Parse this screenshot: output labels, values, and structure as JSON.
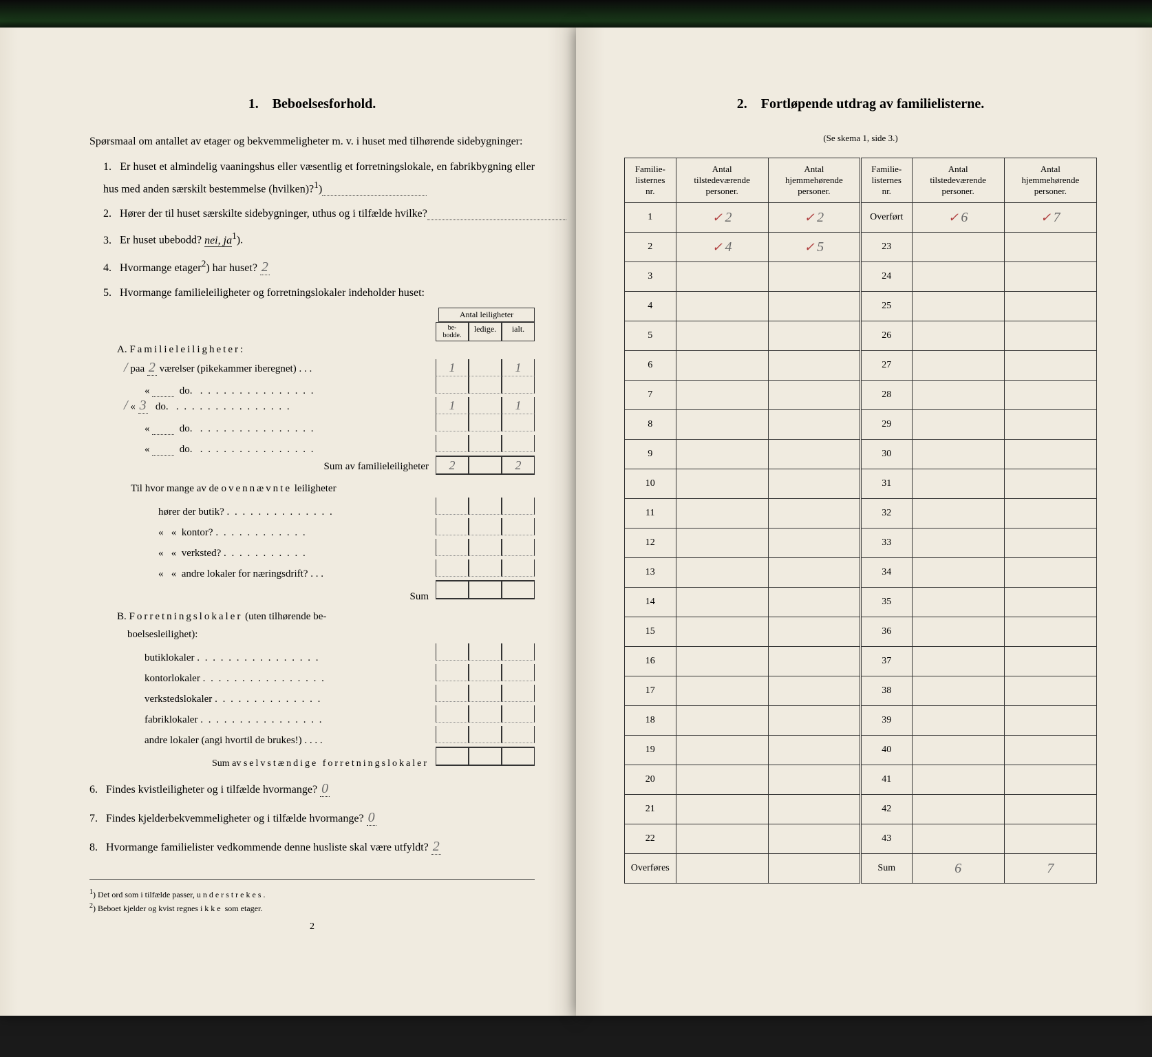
{
  "left": {
    "section_num": "1.",
    "section_title": "Beboelsesforhold.",
    "intro": "Spørsmaal om antallet av etager og bekvemmeligheter m. v. i huset med tilhørende sidebygninger:",
    "q1": "Er huset et almindelig vaaningshus eller væsentlig et forretningslokale, en fabrikbygning eller hus med anden særskilt bestemmelse (hvilken)?",
    "q1_sup": "1",
    "q2": "Hører der til huset særskilte sidebygninger, uthus og i tilfælde hvilke?",
    "q3": "Er huset ubebodd?",
    "q3_options": "nei, ja",
    "q3_sup": "1",
    "q4": "Hvormange etager",
    "q4_sup": "2",
    "q4_rest": "har huset?",
    "q4_answer": "2",
    "q5": "Hvormange familieleiligheter og forretningslokaler indeholder huset:",
    "table_header": "Antal leiligheter",
    "col_bebodde": "be-bodde.",
    "col_ledige": "ledige.",
    "col_ialt": "ialt.",
    "sectionA": "A. Familieleiligheter:",
    "paa": "paa",
    "vaerelser": "værelser (pikekammer iberegnet)",
    "do": "do.",
    "sum_familie": "Sum av familieleiligheter",
    "row_A1_num": "2",
    "row_A1_bebodde": "1",
    "row_A1_ialt": "1",
    "row_A3_num": "3",
    "row_A3_bebodde": "1",
    "row_A3_ialt": "1",
    "sum_bebodde": "2",
    "sum_ialt": "2",
    "til_hvor": "Til hvor mange av de ovennævnte leiligheter",
    "butik": "hører der butik?",
    "kontor": "kontor?",
    "verksted": "verksted?",
    "andre_naering": "andre lokaler for næringsdrift?",
    "sum": "Sum",
    "sectionB": "B. Forretningslokaler (uten tilhørende beboelsesleilighet):",
    "butiklokaler": "butiklokaler",
    "kontorlokaler": "kontorlokaler",
    "verkstedslokaler": "verkstedslokaler",
    "fabriklokaler": "fabriklokaler",
    "andre_lokaler": "andre lokaler (angi hvortil de brukes!)",
    "sum_selvstaendige": "Sum av selvstændige forretningslokaler",
    "q6": "Findes kvistleiligheter og i tilfælde hvormange?",
    "q6_answer": "0",
    "q7": "Findes kjelderbekvemmeligheter og i tilfælde hvormange?",
    "q7_answer": "0",
    "q8": "Hvormange familielister vedkommende denne husliste skal være utfyldt?",
    "q8_answer": "2",
    "footnote1": "Det ord som i tilfælde passer, understrekes.",
    "footnote2": "Beboet kjelder og kvist regnes ikke som etager.",
    "page_num": "2"
  },
  "right": {
    "section_num": "2.",
    "section_title": "Fortløpende utdrag av familielisterne.",
    "subtitle": "(Se skema 1, side 3.)",
    "col1": "Familie-listernes nr.",
    "col2": "Antal tilstedeværende personer.",
    "col3": "Antal hjemmehørende personer.",
    "overfort": "Overført",
    "overfores": "Overføres",
    "sum_label": "Sum",
    "rows_left": [
      {
        "nr": "1",
        "tilstede": "2",
        "hjemme": "2",
        "check": true
      },
      {
        "nr": "2",
        "tilstede": "4",
        "hjemme": "5",
        "check": true
      },
      {
        "nr": "3",
        "tilstede": "",
        "hjemme": ""
      },
      {
        "nr": "4",
        "tilstede": "",
        "hjemme": ""
      },
      {
        "nr": "5",
        "tilstede": "",
        "hjemme": ""
      },
      {
        "nr": "6",
        "tilstede": "",
        "hjemme": ""
      },
      {
        "nr": "7",
        "tilstede": "",
        "hjemme": ""
      },
      {
        "nr": "8",
        "tilstede": "",
        "hjemme": ""
      },
      {
        "nr": "9",
        "tilstede": "",
        "hjemme": ""
      },
      {
        "nr": "10",
        "tilstede": "",
        "hjemme": ""
      },
      {
        "nr": "11",
        "tilstede": "",
        "hjemme": ""
      },
      {
        "nr": "12",
        "tilstede": "",
        "hjemme": ""
      },
      {
        "nr": "13",
        "tilstede": "",
        "hjemme": ""
      },
      {
        "nr": "14",
        "tilstede": "",
        "hjemme": ""
      },
      {
        "nr": "15",
        "tilstede": "",
        "hjemme": ""
      },
      {
        "nr": "16",
        "tilstede": "",
        "hjemme": ""
      },
      {
        "nr": "17",
        "tilstede": "",
        "hjemme": ""
      },
      {
        "nr": "18",
        "tilstede": "",
        "hjemme": ""
      },
      {
        "nr": "19",
        "tilstede": "",
        "hjemme": ""
      },
      {
        "nr": "20",
        "tilstede": "",
        "hjemme": ""
      },
      {
        "nr": "21",
        "tilstede": "",
        "hjemme": ""
      },
      {
        "nr": "22",
        "tilstede": "",
        "hjemme": ""
      }
    ],
    "rows_right": [
      {
        "nr": "Overført",
        "tilstede": "6",
        "hjemme": "7",
        "check": true
      },
      {
        "nr": "23",
        "tilstede": "",
        "hjemme": ""
      },
      {
        "nr": "24",
        "tilstede": "",
        "hjemme": ""
      },
      {
        "nr": "25",
        "tilstede": "",
        "hjemme": ""
      },
      {
        "nr": "26",
        "tilstede": "",
        "hjemme": ""
      },
      {
        "nr": "27",
        "tilstede": "",
        "hjemme": ""
      },
      {
        "nr": "28",
        "tilstede": "",
        "hjemme": ""
      },
      {
        "nr": "29",
        "tilstede": "",
        "hjemme": ""
      },
      {
        "nr": "30",
        "tilstede": "",
        "hjemme": ""
      },
      {
        "nr": "31",
        "tilstede": "",
        "hjemme": ""
      },
      {
        "nr": "32",
        "tilstede": "",
        "hjemme": ""
      },
      {
        "nr": "33",
        "tilstede": "",
        "hjemme": ""
      },
      {
        "nr": "34",
        "tilstede": "",
        "hjemme": ""
      },
      {
        "nr": "35",
        "tilstede": "",
        "hjemme": ""
      },
      {
        "nr": "36",
        "tilstede": "",
        "hjemme": ""
      },
      {
        "nr": "37",
        "tilstede": "",
        "hjemme": ""
      },
      {
        "nr": "38",
        "tilstede": "",
        "hjemme": ""
      },
      {
        "nr": "39",
        "tilstede": "",
        "hjemme": ""
      },
      {
        "nr": "40",
        "tilstede": "",
        "hjemme": ""
      },
      {
        "nr": "41",
        "tilstede": "",
        "hjemme": ""
      },
      {
        "nr": "42",
        "tilstede": "",
        "hjemme": ""
      },
      {
        "nr": "43",
        "tilstede": "",
        "hjemme": ""
      }
    ],
    "sum_tilstede": "6",
    "sum_hjemme": "7"
  }
}
